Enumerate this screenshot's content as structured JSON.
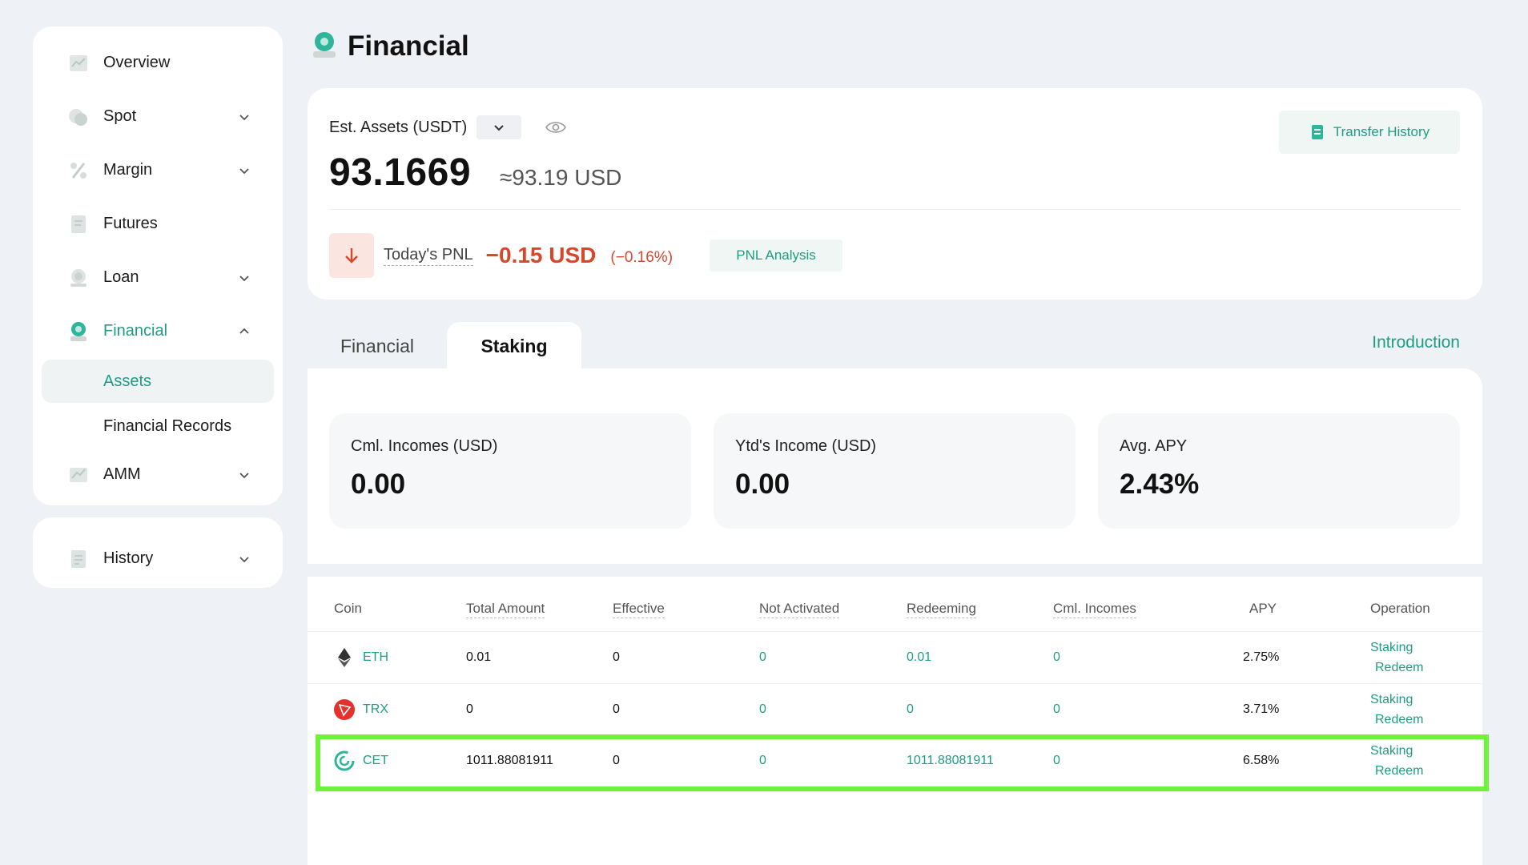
{
  "sidebar": {
    "items": [
      {
        "label": "Overview"
      },
      {
        "label": "Spot"
      },
      {
        "label": "Margin"
      },
      {
        "label": "Futures"
      },
      {
        "label": "Loan"
      },
      {
        "label": "Financial"
      },
      {
        "label": "AMM"
      }
    ],
    "sub_items": [
      {
        "label": "Assets"
      },
      {
        "label": "Financial Records"
      }
    ],
    "history_label": "History"
  },
  "header": {
    "title": "Financial"
  },
  "assets": {
    "est_label": "Est. Assets (USDT)",
    "total": "93.1669",
    "approx": "≈93.19 USD",
    "pnl_label": "Today's PNL",
    "pnl_value": "−0.15 USD",
    "pnl_pct": "(−0.16%)",
    "pnl_analysis": "PNL Analysis",
    "transfer_history": "Transfer History"
  },
  "tabs": [
    {
      "label": "Financial"
    },
    {
      "label": "Staking"
    }
  ],
  "introduction": "Introduction",
  "stats": [
    {
      "label": "Cml. Incomes (USD)",
      "value": "0.00"
    },
    {
      "label": "Ytd's Income (USD)",
      "value": "0.00"
    },
    {
      "label": "Avg. APY",
      "value": "2.43%"
    }
  ],
  "table": {
    "headers": [
      "Coin",
      "Total Amount",
      "Effective",
      "Not Activated",
      "Redeeming",
      "Cml. Incomes",
      "APY",
      "Operation"
    ],
    "rows": [
      {
        "coin": "ETH",
        "total": "0.01",
        "effective": "0",
        "not_activated": "0",
        "redeeming": "0.01",
        "cml": "0",
        "apy": "2.75%",
        "op1": "Staking",
        "op2": "Redeem"
      },
      {
        "coin": "TRX",
        "total": "0",
        "effective": "0",
        "not_activated": "0",
        "redeeming": "0",
        "cml": "0",
        "apy": "3.71%",
        "op1": "Staking",
        "op2": "Redeem"
      },
      {
        "coin": "CET",
        "total": "1011.88081911",
        "effective": "0",
        "not_activated": "0",
        "redeeming": "1011.88081911",
        "cml": "0",
        "apy": "6.58%",
        "op1": "Staking",
        "op2": "Redeem"
      }
    ]
  },
  "colors": {
    "accent": "#1f9c84",
    "negative": "#d9472b",
    "highlight": "#6ef23a"
  }
}
